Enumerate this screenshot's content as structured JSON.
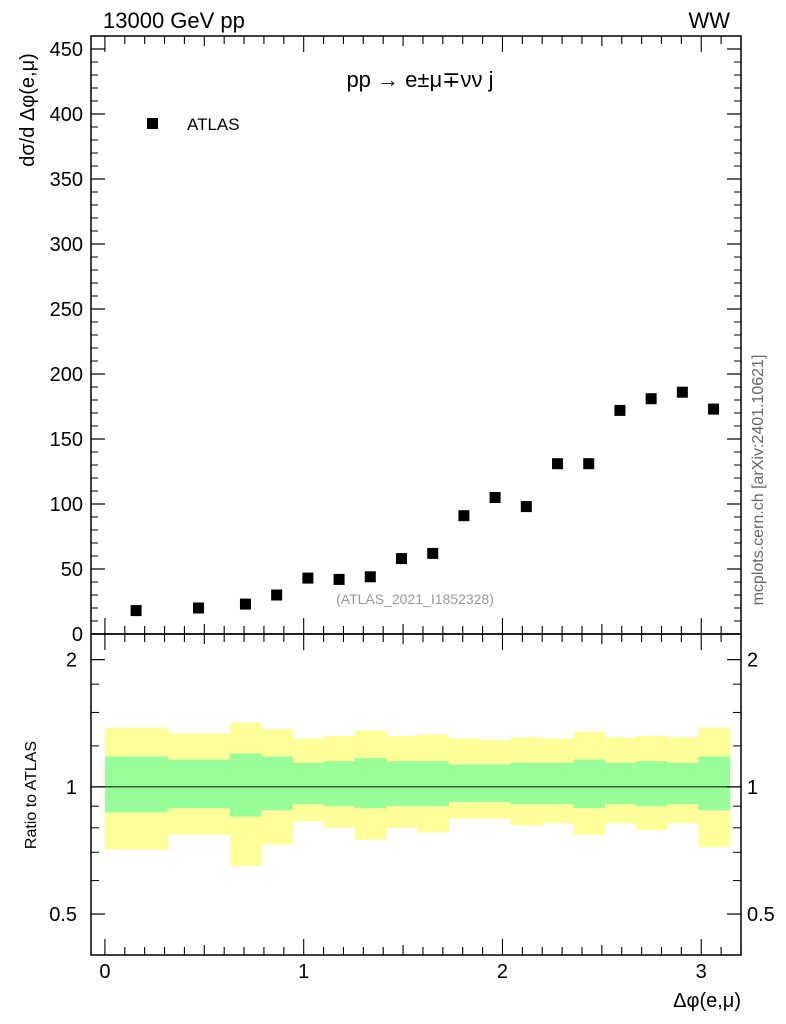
{
  "header": {
    "energy_label": "13000 GeV pp",
    "process_tag": "WW"
  },
  "side_label": "mcplots.cern.ch [arXiv:2401.10621]",
  "chart_data": [
    {
      "type": "scatter",
      "title": "pp → e±μ∓νν j",
      "ylabel": "dσ/d Δφ(e,μ)",
      "xlabel": "Δφ(e,μ)",
      "xlim": [
        -0.07,
        3.2
      ],
      "ylim": [
        0,
        460
      ],
      "xticks": [
        0,
        1,
        2,
        3
      ],
      "yticks": [
        0,
        50,
        100,
        150,
        200,
        250,
        300,
        350,
        400,
        450
      ],
      "ytick_labels": [
        "0",
        "50",
        "100",
        "150",
        "200",
        "250",
        "300",
        "350",
        "400",
        "450"
      ],
      "legend": [
        {
          "name": "ATLAS",
          "marker": "square",
          "color": "#000000"
        }
      ],
      "legend_position": "top-left",
      "watermark": "(ATLAS_2021_I1852328)",
      "series": [
        {
          "name": "ATLAS",
          "x": [
            0.157,
            0.471,
            0.707,
            0.864,
            1.021,
            1.178,
            1.335,
            1.492,
            1.649,
            1.806,
            1.963,
            2.12,
            2.277,
            2.434,
            2.591,
            2.748,
            2.905,
            3.062
          ],
          "y": [
            18,
            20,
            23,
            30,
            43,
            42,
            44,
            58,
            62,
            91,
            105,
            98,
            131,
            131,
            172,
            181,
            186,
            173
          ]
        }
      ]
    },
    {
      "type": "area",
      "ylabel": "Ratio to ATLAS",
      "xlabel": "Δφ(e,μ)",
      "xlim": [
        -0.07,
        3.2
      ],
      "ylim": [
        0.4,
        2.3
      ],
      "yscale": "log",
      "xticks": [
        0,
        1,
        2,
        3
      ],
      "xtick_labels": [
        "0",
        "1",
        "2",
        "3"
      ],
      "yticks": [
        0.5,
        1,
        2
      ],
      "ytick_labels": [
        "0.5",
        "1",
        "2"
      ],
      "reference_line": 1,
      "bin_edges": [
        0,
        0.314,
        0.628,
        0.785,
        0.942,
        1.1,
        1.257,
        1.414,
        1.571,
        1.728,
        1.885,
        2.042,
        2.199,
        2.356,
        2.513,
        2.67,
        2.827,
        2.985,
        3.142
      ],
      "bands": [
        {
          "name": "outer uncertainty",
          "color": "#ffff99",
          "low": [
            0.71,
            0.77,
            0.65,
            0.73,
            0.83,
            0.8,
            0.75,
            0.8,
            0.78,
            0.84,
            0.84,
            0.81,
            0.82,
            0.77,
            0.82,
            0.79,
            0.82,
            0.72
          ],
          "high": [
            1.38,
            1.34,
            1.42,
            1.37,
            1.3,
            1.32,
            1.36,
            1.32,
            1.33,
            1.3,
            1.29,
            1.31,
            1.3,
            1.35,
            1.31,
            1.32,
            1.31,
            1.38
          ]
        },
        {
          "name": "inner uncertainty",
          "color": "#99ff99",
          "low": [
            0.87,
            0.89,
            0.85,
            0.88,
            0.91,
            0.9,
            0.89,
            0.9,
            0.9,
            0.92,
            0.92,
            0.91,
            0.91,
            0.89,
            0.91,
            0.9,
            0.91,
            0.88
          ],
          "high": [
            1.18,
            1.16,
            1.2,
            1.18,
            1.14,
            1.15,
            1.17,
            1.15,
            1.15,
            1.13,
            1.13,
            1.14,
            1.14,
            1.16,
            1.14,
            1.15,
            1.14,
            1.18
          ]
        }
      ]
    }
  ]
}
